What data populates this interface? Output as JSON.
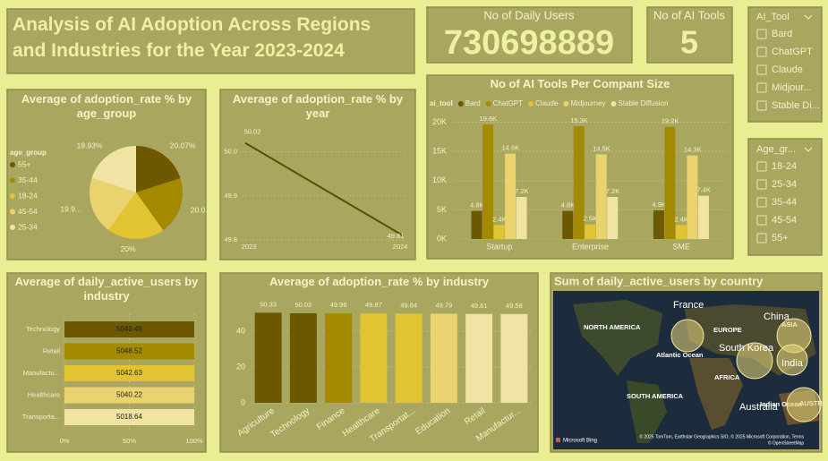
{
  "header": {
    "title": "Analysis of AI Adoption Across Regions and Industries for the Year 2023-2024"
  },
  "cards": [
    {
      "label": "No of Daily Users",
      "value": 730698889
    },
    {
      "label": "No of AI Tools",
      "value": 5
    }
  ],
  "slicers": [
    {
      "title": "AI_Tool",
      "items": [
        "Bard",
        "ChatGPT",
        "Claude",
        "Midjour...",
        "Stable Di..."
      ]
    },
    {
      "title": "Age_gr...",
      "items": [
        "18-24",
        "25-34",
        "35-44",
        "45-54",
        "55+"
      ]
    }
  ],
  "chart_data": [
    {
      "type": "pie",
      "title": "Average of adoption_rate % by age_group",
      "legend_title": "age_group",
      "categories": [
        "55+",
        "35-44",
        "18-24",
        "45-54",
        "25-34"
      ],
      "values": [
        20.07,
        20.03,
        20,
        19.97,
        19.93
      ],
      "value_labels": [
        "20.07%",
        "20.0...",
        "20%",
        "19.9...",
        "19.93%"
      ],
      "colors": [
        "#6b5800",
        "#a38a00",
        "#e2c332",
        "#ead36f",
        "#f1e3a3"
      ]
    },
    {
      "type": "line",
      "title": "Average of adoption_rate % by year",
      "categories": [
        "2023",
        "2024"
      ],
      "values": [
        50.02,
        49.81
      ],
      "color": "#5e4e00",
      "ylim": [
        49.8,
        50.05
      ],
      "yticks": [
        49.8,
        49.9,
        {
          "value": 50,
          "label": "50.0"
        }
      ]
    },
    {
      "type": "grouped_bar",
      "title": "No of AI Tools Per Compant Size",
      "legend_title": "ai_tool",
      "categories": [
        "Startup",
        "Enterprise",
        "SME"
      ],
      "series": [
        {
          "name": "Bard",
          "color": "#6b5800",
          "values": [
            4800,
            4800,
            4900
          ],
          "value_labels": [
            "4.8K",
            "4.8K",
            "4.9K"
          ]
        },
        {
          "name": "ChatGPT",
          "color": "#a38a00",
          "values": [
            19600,
            19300,
            19200
          ],
          "value_labels": [
            "19.6K",
            "19.3K",
            "19.2K"
          ]
        },
        {
          "name": "Claude",
          "color": "#e2c332",
          "values": [
            2400,
            2500,
            2400
          ],
          "value_labels": [
            "2.4K",
            "2.5K",
            "2.4K"
          ]
        },
        {
          "name": "Midjourney",
          "color": "#ead36f",
          "values": [
            14600,
            14500,
            14300
          ],
          "value_labels": [
            "14.6K",
            "14.5K",
            "14.3K"
          ]
        },
        {
          "name": "Stable Diffusion",
          "color": "#f1e3a3",
          "values": [
            7200,
            7200,
            7400
          ],
          "value_labels": [
            "7.2K",
            "7.2K",
            "7.4K"
          ]
        }
      ],
      "ylim": [
        0,
        21000
      ],
      "yticks": [
        {
          "value": 0,
          "label": "0K"
        },
        {
          "value": 5000,
          "label": "5K"
        },
        {
          "value": 10000,
          "label": "10K"
        },
        {
          "value": 15000,
          "label": "15K"
        },
        {
          "value": 20000,
          "label": "20K"
        }
      ]
    },
    {
      "type": "stacked_bar_100",
      "orientation": "horizontal",
      "title": "Average of daily_active_users by industry",
      "categories": [
        "Technology",
        "Retail",
        "Manufactu...",
        "Healthcare",
        "Transporta..."
      ],
      "values": [
        5049.48,
        5048.52,
        5042.63,
        5040.22,
        5018.64
      ],
      "colors": [
        "#6b5800",
        "#a38a00",
        "#e2c332",
        "#ead36f",
        "#f1e3a3"
      ],
      "xlim": [
        0,
        100
      ],
      "xticks": [
        {
          "value": 0,
          "label": "0%"
        },
        {
          "value": 50,
          "label": "50%"
        },
        {
          "value": 100,
          "label": "100%"
        }
      ]
    },
    {
      "type": "bar",
      "title": "Average of adoption_rate % by industry",
      "categories": [
        "Agriculture",
        "Technology",
        "Finance",
        "Healthcare",
        "Transportat...",
        "Education",
        "Retail",
        "Manufactur..."
      ],
      "values": [
        50.33,
        50.02,
        49.96,
        49.87,
        49.84,
        49.79,
        49.61,
        49.58
      ],
      "colors": [
        "#6b5800",
        "#6b5800",
        "#a38a00",
        "#e2c332",
        "#e2c332",
        "#ead36f",
        "#f1e3a3",
        "#f1e3a3"
      ],
      "ylim": [
        0,
        55
      ],
      "yticks": [
        0,
        20,
        40
      ]
    }
  ],
  "map": {
    "title": "Sum of daily_active_users by country",
    "labels": [
      "NORTH AMERICA",
      "Atlantic Ocean",
      "EUROPE",
      "AFRICA",
      "SOUTH AMERICA",
      "ASIA",
      "Indian Ocean",
      "AUSTR"
    ],
    "countries": [
      "France",
      "China",
      "South Korea",
      "India",
      "Australia"
    ],
    "credits": "© 2025 TomTom, Earthstar Geographics SIO, © 2025 Microsoft Corporation, Terms",
    "attribution": "© OpenStreetMap",
    "provider": "Microsoft Bing"
  }
}
